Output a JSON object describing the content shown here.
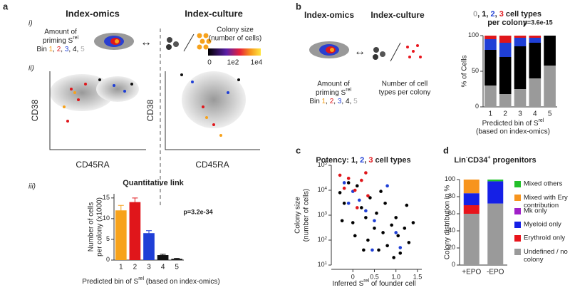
{
  "figure": {
    "panel_a": {
      "label": "a",
      "sub_i": "i)",
      "sub_ii": "ii)",
      "sub_iii": "iii)",
      "omics_title": "Index-omics",
      "culture_title": "Index-culture",
      "priming": [
        "Amount of",
        {
          "runs": [
            {
              "text": "priming S"
            },
            {
              "text": "rel",
              "sup": true
            }
          ]
        }
      ],
      "bin_line": {
        "runs": [
          {
            "text": "Bin "
          },
          {
            "text": "1",
            "color": "#f39c12"
          },
          {
            "text": ", "
          },
          {
            "text": "2",
            "color": "#e0161b"
          },
          {
            "text": ", "
          },
          {
            "text": "3",
            "color": "#1f3fd6"
          },
          {
            "text": ", "
          },
          {
            "text": "4",
            "color": "#000"
          },
          {
            "text": ", "
          },
          {
            "text": "5",
            "color": "#aaa"
          }
        ]
      },
      "colony_size": [
        "Colony size",
        "(number of cells)"
      ],
      "colorbar_ticks": [
        "0",
        "1e2",
        "1e4"
      ],
      "ylabel": "CD38",
      "xlabel": "CD45RA"
    },
    "panel_b": {
      "label": "b",
      "omics_title": "Index-omics",
      "culture_title": "Index-culture",
      "priming": [
        "Amount of",
        {
          "runs": [
            {
              "text": "priming S"
            },
            {
              "text": "rel",
              "sup": true
            }
          ]
        }
      ],
      "bin_line": {
        "runs": [
          {
            "text": "Bin "
          },
          {
            "text": "1",
            "color": "#f39c12"
          },
          {
            "text": ", "
          },
          {
            "text": "2",
            "color": "#e0161b"
          },
          {
            "text": ", "
          },
          {
            "text": "3",
            "color": "#1f3fd6"
          },
          {
            "text": ", "
          },
          {
            "text": "4",
            "color": "#000"
          },
          {
            "text": ", "
          },
          {
            "text": "5",
            "color": "#aaa"
          }
        ]
      },
      "cell_types": [
        "Number of cell",
        "types per colony"
      ]
    },
    "panel_c": {
      "label": "c"
    },
    "panel_d": {
      "label": "d"
    }
  },
  "chart_data": [
    {
      "type": "bar",
      "title": "Quantitative link",
      "ylabel": [
        "Number of cells",
        "per colony (x1000)"
      ],
      "xlabel": {
        "runs": [
          {
            "text": "Predicted bin of S"
          },
          {
            "text": "rel",
            "sup": true
          },
          {
            "text": " (based on index-omics)"
          }
        ]
      },
      "categories": [
        "1",
        "2",
        "3",
        "4",
        "5"
      ],
      "values": [
        12,
        14,
        6.5,
        1.2,
        0.3
      ],
      "errors": [
        1.2,
        1,
        0.6,
        0.2,
        0.1
      ],
      "colors": [
        "#f7a21b",
        "#e0161b",
        "#1f3fd6",
        "#111",
        "#111"
      ],
      "label_colors": [
        "#f39c12",
        "#e0161b",
        "#1f3fd6",
        "#000",
        "#bbb"
      ],
      "annotation": "p=3.2e-34",
      "ylim": [
        0,
        16
      ],
      "yticks": [
        0,
        5,
        10,
        15
      ]
    },
    {
      "type": "stacked_bar",
      "title": [
        {
          "runs": [
            {
              "text": "0",
              "color": "#aaa"
            },
            {
              "text": ", "
            },
            {
              "text": "1",
              "color": "#000"
            },
            {
              "text": ", "
            },
            {
              "text": "2",
              "color": "#1f3fd6"
            },
            {
              "text": ", "
            },
            {
              "text": "3",
              "color": "#e0161b"
            },
            {
              "text": " cell types"
            }
          ]
        },
        "per colony"
      ],
      "annotation": "p=3.6e-15",
      "ylabel": "% of Cells",
      "xlabel": [
        {
          "runs": [
            {
              "text": "Predicted bin of S"
            },
            {
              "text": "rel",
              "sup": true
            }
          ]
        },
        "(based on index-omics)"
      ],
      "categories": [
        "1",
        "2",
        "3",
        "4",
        "5"
      ],
      "label_colors": [
        "#f39c12",
        "#e0161b",
        "#1f3fd6",
        "#000",
        "#bbb"
      ],
      "series": [
        {
          "color": "#9a9a9a",
          "values": [
            30,
            18,
            25,
            40,
            58
          ]
        },
        {
          "color": "#000",
          "values": [
            50,
            52,
            60,
            50,
            42
          ]
        },
        {
          "color": "#1f3fd6",
          "values": [
            15,
            20,
            12,
            7,
            0
          ]
        },
        {
          "color": "#e0161b",
          "values": [
            5,
            10,
            3,
            3,
            0
          ]
        }
      ],
      "ylim": [
        0,
        100
      ],
      "yticks": [
        0,
        50,
        100
      ]
    },
    {
      "type": "scatter",
      "title": {
        "runs": [
          {
            "text": "Potency: "
          },
          {
            "text": "1",
            "color": "#000"
          },
          {
            "text": ", "
          },
          {
            "text": "2",
            "color": "#1f3fd6"
          },
          {
            "text": ", "
          },
          {
            "text": "3",
            "color": "#e0161b"
          },
          {
            "text": " cell types"
          }
        ]
      },
      "ylabel": [
        "Colony size",
        "(number of cells)"
      ],
      "xlabel": {
        "runs": [
          {
            "text": "Inferred S"
          },
          {
            "text": "rel",
            "sup": true
          },
          {
            "text": " of founder cell"
          }
        ]
      },
      "log_y": true,
      "xlim": [
        -0.5,
        1.6
      ],
      "ylim": [
        10,
        100000
      ],
      "xticks": [
        0,
        0.5,
        {
          "value": 1,
          "label": "1.0"
        },
        1.5
      ],
      "yticks": [
        {
          "value": 10,
          "label": "10",
          "exp": "1"
        },
        {
          "value": 100,
          "label": "10",
          "exp": "2"
        },
        {
          "value": 1000,
          "label": "10",
          "exp": "3"
        },
        {
          "value": 10000,
          "label": "10",
          "exp": "4"
        },
        {
          "value": 100000,
          "label": "10",
          "exp": "5"
        }
      ],
      "series": [
        {
          "color": "#000",
          "x": [
            -0.3,
            -0.2,
            -0.1,
            0,
            0.1,
            0.2,
            0.3,
            0.35,
            0.4,
            0.5,
            0.55,
            0.6,
            0.7,
            0.75,
            0.8,
            0.9,
            0.95,
            1,
            1.05,
            1.1,
            1.2,
            1.25,
            1.3,
            1.4,
            0.25,
            0.05,
            -0.25,
            0.65
          ],
          "y": [
            8000,
            3000,
            20000,
            500,
            15000,
            2000,
            800,
            100,
            5000,
            300,
            1200,
            40,
            200,
            3000,
            60,
            400,
            20,
            800,
            150,
            30,
            300,
            2500,
            80,
            500,
            40,
            150,
            600,
            9000
          ]
        },
        {
          "color": "#1f3fd6",
          "x": [
            -0.2,
            0,
            0.15,
            0.3,
            0.5,
            0.8,
            1,
            1.1,
            -0.1,
            0.45
          ],
          "y": [
            20000,
            9000,
            4000,
            1500,
            600,
            15000,
            200,
            50,
            3000,
            40
          ]
        },
        {
          "color": "#e0161b",
          "x": [
            -0.3,
            -0.1,
            0.05,
            0.2,
            0.35,
            0.1,
            0.3,
            -0.2
          ],
          "y": [
            40000,
            30000,
            10000,
            25000,
            6000,
            2000,
            50000,
            12000
          ]
        }
      ]
    },
    {
      "type": "stacked_bar",
      "title": {
        "runs": [
          {
            "text": "Lin"
          },
          {
            "text": "-",
            "sup": true
          },
          {
            "text": "CD34"
          },
          {
            "text": "+",
            "sup": true
          },
          {
            "text": " progenitors"
          }
        ]
      },
      "ylabel": "Colony distribution in %",
      "categories": [
        "+EPO",
        "-EPO"
      ],
      "series": [
        {
          "name": "Undefined / no colony",
          "color": "#9a9a9a",
          "values": [
            60,
            72
          ]
        },
        {
          "name": "Erythroid only",
          "color": "#e8141b",
          "values": [
            10,
            0
          ]
        },
        {
          "name": "Myeloid only",
          "color": "#1520e6",
          "values": [
            14,
            26
          ]
        },
        {
          "name": "Mk only",
          "color": "#a020c8",
          "values": [
            0,
            0
          ]
        },
        {
          "name": "Mixed with Ery contribution",
          "color": "#f7941d",
          "values": [
            16,
            0
          ]
        },
        {
          "name": "Mixed others",
          "color": "#22c02a",
          "values": [
            0,
            2
          ]
        }
      ],
      "ylim": [
        0,
        100
      ],
      "yticks": [
        0,
        20,
        40,
        60,
        80,
        100
      ]
    }
  ]
}
